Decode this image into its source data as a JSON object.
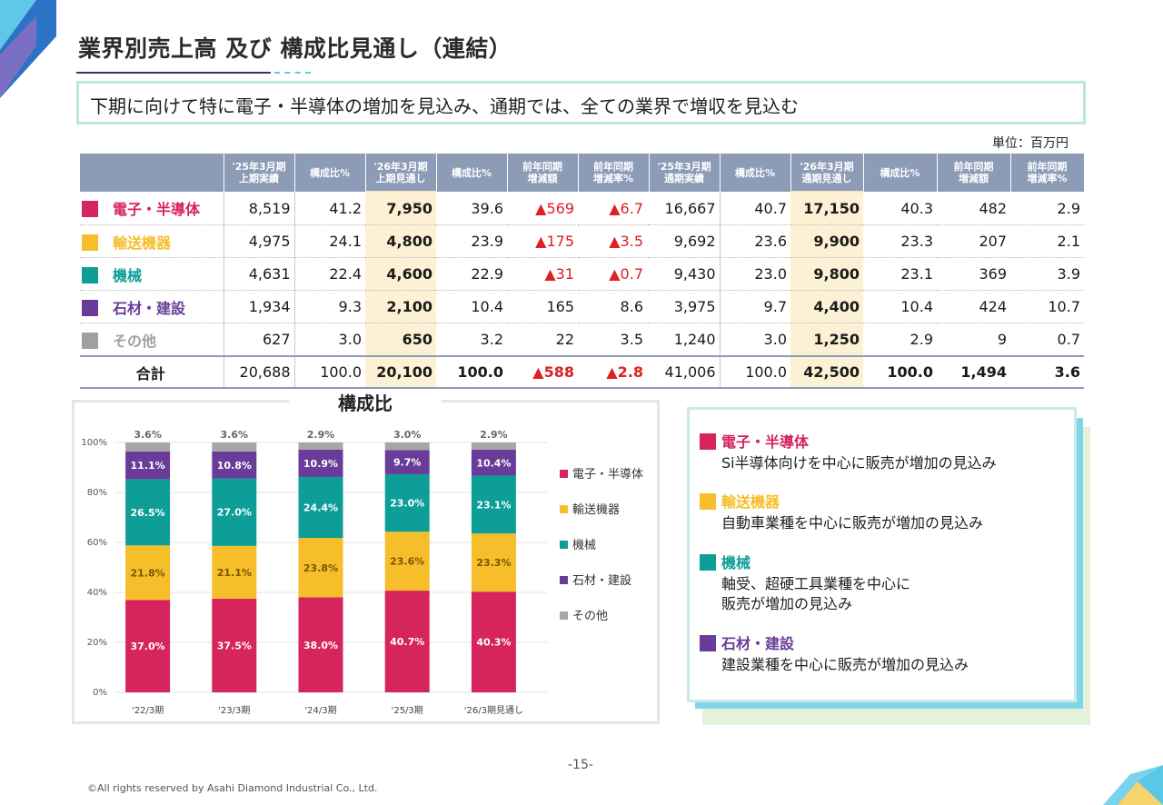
{
  "page": {
    "title": "業界別売上高 及び 構成比見通し（連結）",
    "headline": "下期に向けて特に電子・半導体の増加を見込み、通期では、全ての業界で増収を見込む",
    "unit": "単位：百万円",
    "page_number": "-15-",
    "copyright": "©All rights reserved by Asahi Diamond Industrial Co., Ltd."
  },
  "table": {
    "headers": [
      "",
      "'25年3月期\n上期実績",
      "構成比%",
      "'26年3月期\n上期見通し",
      "構成比%",
      "前年同期\n増減額",
      "前年同期\n増減率%",
      "'25年3月期\n通期実績",
      "構成比%",
      "'26年3月期\n通期見通し",
      "構成比%",
      "前年同期\n増減額",
      "前年同期\n増減率%"
    ],
    "rows": [
      {
        "name": "電子・半導体",
        "color": "#d6245c",
        "cells": [
          "8,519",
          "41.2",
          "7,950",
          "39.6",
          "▲569",
          "▲6.7",
          "16,667",
          "40.7",
          "17,150",
          "40.3",
          "482",
          "2.9"
        ]
      },
      {
        "name": "輸送機器",
        "color": "#f5be2a",
        "cells": [
          "4,975",
          "24.1",
          "4,800",
          "23.9",
          "▲175",
          "▲3.5",
          "9,692",
          "23.6",
          "9,900",
          "23.3",
          "207",
          "2.1"
        ]
      },
      {
        "name": "機械",
        "color": "#0d9e98",
        "cells": [
          "4,631",
          "22.4",
          "4,600",
          "22.9",
          "▲31",
          "▲0.7",
          "9,430",
          "23.0",
          "9,800",
          "23.1",
          "369",
          "3.9"
        ]
      },
      {
        "name": "石材・建設",
        "color": "#6a3c9a",
        "cells": [
          "1,934",
          "9.3",
          "2,100",
          "10.4",
          "165",
          "8.6",
          "3,975",
          "9.7",
          "4,400",
          "10.4",
          "424",
          "10.7"
        ]
      },
      {
        "name": "その他",
        "color": "#a0a0a0",
        "cells": [
          "627",
          "3.0",
          "650",
          "3.2",
          "22",
          "3.5",
          "1,240",
          "3.0",
          "1,250",
          "2.9",
          "9",
          "0.7"
        ]
      }
    ],
    "total": {
      "name": "合計",
      "cells": [
        "20,688",
        "100.0",
        "20,100",
        "100.0",
        "▲588",
        "▲2.8",
        "41,006",
        "100.0",
        "42,500",
        "100.0",
        "1,494",
        "3.6"
      ]
    }
  },
  "chart_data": {
    "type": "bar",
    "stacked": true,
    "title": "構成比",
    "categories": [
      "'22/3期",
      "'23/3期",
      "'24/3期",
      "'25/3期",
      "'26/3期見通し"
    ],
    "series": [
      {
        "name": "電子・半導体",
        "color": "#d6245c",
        "values": [
          37.0,
          37.5,
          38.0,
          40.7,
          40.3
        ]
      },
      {
        "name": "輸送機器",
        "color": "#f5be2a",
        "values": [
          21.8,
          21.1,
          23.8,
          23.6,
          23.3
        ]
      },
      {
        "name": "機械",
        "color": "#0d9e98",
        "values": [
          26.5,
          27.0,
          24.4,
          23.0,
          23.1
        ]
      },
      {
        "name": "石材・建設",
        "color": "#6a3c9a",
        "values": [
          11.1,
          10.8,
          10.9,
          9.7,
          10.4
        ]
      },
      {
        "name": "その他",
        "color": "#a6a6a6",
        "values": [
          3.6,
          3.6,
          2.9,
          3.0,
          2.9
        ]
      }
    ],
    "yticks": [
      "0%",
      "20%",
      "40%",
      "60%",
      "80%",
      "100%"
    ],
    "ylim": [
      0,
      100
    ],
    "legend": "right",
    "grid": true
  },
  "notes": [
    {
      "title": "電子・半導体",
      "color": "#d6245c",
      "lines": [
        "Si半導体向けを中心に販売が増加の見込み"
      ]
    },
    {
      "title": "輸送機器",
      "color": "#f5be2a",
      "lines": [
        "自動車業種を中心に販売が増加の見込み"
      ]
    },
    {
      "title": "機械",
      "color": "#0d9e98",
      "lines": [
        "軸受、超硬工具業種を中心に",
        "販売が増加の見込み"
      ]
    },
    {
      "title": "石材・建設",
      "color": "#6a3c9a",
      "lines": [
        "建設業種を中心に販売が増加の見込み"
      ]
    }
  ]
}
